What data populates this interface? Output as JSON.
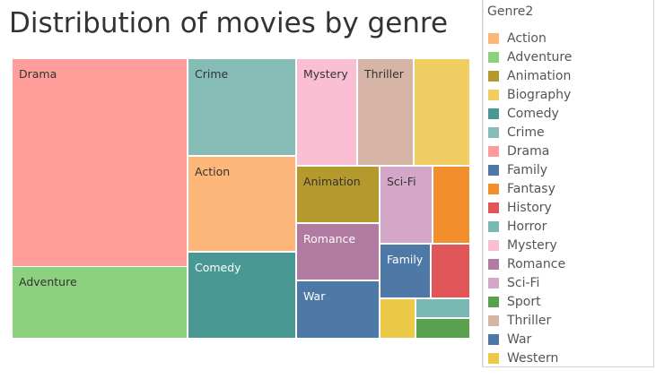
{
  "chart_data": {
    "type": "treemap",
    "title": "Distribution of movies by genre",
    "legend": {
      "title": "Genre2",
      "placement": "right",
      "entries": [
        {
          "name": "Action",
          "color": "#FDB77A"
        },
        {
          "name": "Adventure",
          "color": "#8CD17D"
        },
        {
          "name": "Animation",
          "color": "#B6992D"
        },
        {
          "name": "Biography",
          "color": "#F1CE63"
        },
        {
          "name": "Comedy",
          "color": "#499894"
        },
        {
          "name": "Crime",
          "color": "#86BCB6"
        },
        {
          "name": "Drama",
          "color": "#FF9D9A"
        },
        {
          "name": "Family",
          "color": "#4E79A7"
        },
        {
          "name": "Fantasy",
          "color": "#F28E2B"
        },
        {
          "name": "History",
          "color": "#E15759"
        },
        {
          "name": "Horror",
          "color": "#79B8B3"
        },
        {
          "name": "Mystery",
          "color": "#FABFD2"
        },
        {
          "name": "Romance",
          "color": "#B07AA1"
        },
        {
          "name": "Sci-Fi",
          "color": "#D4A6C8"
        },
        {
          "name": "Sport",
          "color": "#59A14F"
        },
        {
          "name": "Thriller",
          "color": "#D7B5A6"
        },
        {
          "name": "War",
          "color": "#4E79A7"
        },
        {
          "name": "Western",
          "color": "#EDC948"
        }
      ]
    },
    "cells": [
      {
        "genre": "Drama",
        "value": 23.5,
        "color": "#FF9D9A",
        "label": "Drama"
      },
      {
        "genre": "Adventure",
        "value": 8.6,
        "color": "#8CD17D",
        "label": "Adventure"
      },
      {
        "genre": "Crime",
        "value": 10.0,
        "color": "#86BCB6",
        "label": "Crime"
      },
      {
        "genre": "Action",
        "value": 10.1,
        "color": "#FDB77A",
        "label": "Action"
      },
      {
        "genre": "Comedy",
        "value": 8.4,
        "color": "#499894",
        "label": "Comedy"
      },
      {
        "genre": "Mystery",
        "value": 5.1,
        "color": "#FABFD2",
        "label": "Mystery"
      },
      {
        "genre": "Thriller",
        "value": 4.8,
        "color": "#D7B5A6",
        "label": "Thriller"
      },
      {
        "genre": "Biography",
        "value": 4.7,
        "color": "#F1CE63",
        "label": ""
      },
      {
        "genre": "Animation",
        "value": 3.6,
        "color": "#B6992D",
        "label": "Animation"
      },
      {
        "genre": "Romance",
        "value": 3.6,
        "color": "#B07AA1",
        "label": "Romance"
      },
      {
        "genre": "War",
        "value": 3.6,
        "color": "#4E79A7",
        "label": "War"
      },
      {
        "genre": "Sci-Fi",
        "value": 2.5,
        "color": "#D4A6C8",
        "label": "Sci-Fi"
      },
      {
        "genre": "Family",
        "value": 1.8,
        "color": "#4E79A7",
        "label": "Family"
      },
      {
        "genre": "Fantasy",
        "value": 1.7,
        "color": "#F28E2B",
        "label": ""
      },
      {
        "genre": "History",
        "value": 1.3,
        "color": "#E15759",
        "label": ""
      },
      {
        "genre": "Western",
        "value": 1.3,
        "color": "#EDC948",
        "label": ""
      },
      {
        "genre": "Horror",
        "value": 0.7,
        "color": "#79B8B3",
        "label": ""
      },
      {
        "genre": "Sport",
        "value": 0.7,
        "color": "#59A14F",
        "label": ""
      }
    ]
  }
}
